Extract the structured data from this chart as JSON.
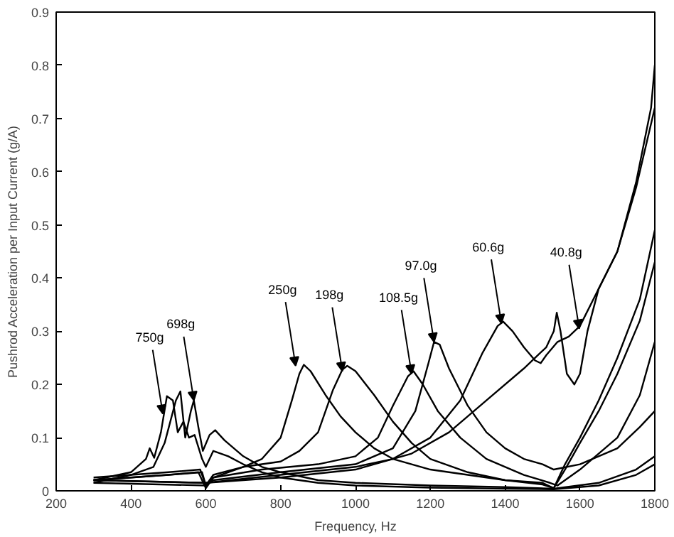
{
  "chart_data": {
    "type": "line",
    "xlabel": "Frequency, Hz",
    "ylabel": "Pushrod Acceleration per Input Current (g/A)",
    "xlim": [
      200,
      1800
    ],
    "ylim": [
      0,
      0.9
    ],
    "xticks": [
      200,
      400,
      600,
      800,
      1000,
      1200,
      1400,
      1600,
      1800
    ],
    "yticks": [
      0,
      0.1,
      0.2,
      0.3,
      0.4,
      0.5,
      0.6,
      0.7,
      0.8,
      0.9
    ],
    "grid": false,
    "marker": "none",
    "line_style": "solid",
    "series": [
      {
        "color": "#000000",
        "x": [
          300,
          400,
          440,
          450,
          462,
          480,
          496,
          512,
          525,
          540,
          555,
          570,
          590,
          600,
          620,
          660,
          700,
          750,
          800,
          900,
          1000,
          1200,
          1400,
          1530,
          1650,
          1750,
          1800
        ],
        "values": [
          0.02,
          0.035,
          0.06,
          0.08,
          0.062,
          0.11,
          0.178,
          0.17,
          0.11,
          0.13,
          0.1,
          0.105,
          0.06,
          0.045,
          0.075,
          0.065,
          0.05,
          0.035,
          0.025,
          0.015,
          0.01,
          0.006,
          0.004,
          0.003,
          0.01,
          0.03,
          0.05
        ]
      },
      {
        "color": "#000000",
        "x": [
          300,
          400,
          460,
          490,
          505,
          520,
          532,
          545,
          560,
          568,
          580,
          592,
          610,
          625,
          650,
          700,
          750,
          800,
          900,
          1000,
          1200,
          1400,
          1530,
          1650,
          1750,
          1800
        ],
        "values": [
          0.015,
          0.03,
          0.045,
          0.09,
          0.13,
          0.17,
          0.187,
          0.1,
          0.15,
          0.17,
          0.12,
          0.075,
          0.105,
          0.114,
          0.095,
          0.065,
          0.045,
          0.035,
          0.02,
          0.015,
          0.01,
          0.007,
          0.004,
          0.015,
          0.04,
          0.065
        ]
      },
      {
        "color": "#000000",
        "x": [
          300,
          400,
          500,
          580,
          600,
          620,
          700,
          750,
          800,
          830,
          850,
          862,
          880,
          920,
          960,
          1000,
          1050,
          1100,
          1200,
          1300,
          1400,
          1500,
          1530,
          1560,
          1600,
          1650,
          1700,
          1760,
          1800
        ],
        "values": [
          0.02,
          0.025,
          0.03,
          0.035,
          0.005,
          0.025,
          0.045,
          0.06,
          0.1,
          0.17,
          0.22,
          0.237,
          0.225,
          0.18,
          0.14,
          0.11,
          0.08,
          0.06,
          0.04,
          0.03,
          0.02,
          0.015,
          0.005,
          0.05,
          0.1,
          0.17,
          0.25,
          0.36,
          0.49
        ]
      },
      {
        "color": "#000000",
        "x": [
          300,
          400,
          500,
          585,
          600,
          620,
          700,
          750,
          800,
          850,
          900,
          940,
          965,
          978,
          1000,
          1050,
          1100,
          1150,
          1200,
          1300,
          1400,
          1500,
          1530,
          1560,
          1600,
          1650,
          1700,
          1760,
          1800
        ],
        "values": [
          0.025,
          0.03,
          0.035,
          0.04,
          0.01,
          0.03,
          0.045,
          0.05,
          0.055,
          0.075,
          0.11,
          0.19,
          0.228,
          0.235,
          0.225,
          0.18,
          0.13,
          0.09,
          0.06,
          0.035,
          0.02,
          0.012,
          0.005,
          0.04,
          0.09,
          0.15,
          0.22,
          0.32,
          0.43
        ]
      },
      {
        "color": "#000000",
        "x": [
          300,
          500,
          590,
          600,
          620,
          750,
          900,
          1000,
          1060,
          1100,
          1140,
          1155,
          1180,
          1220,
          1280,
          1350,
          1450,
          1520,
          1540,
          1600,
          1700,
          1760,
          1800
        ],
        "values": [
          0.02,
          0.03,
          0.035,
          0.01,
          0.025,
          0.04,
          0.05,
          0.065,
          0.1,
          0.16,
          0.215,
          0.225,
          0.2,
          0.15,
          0.1,
          0.06,
          0.03,
          0.015,
          0.01,
          0.04,
          0.1,
          0.18,
          0.28
        ]
      },
      {
        "color": "#000000",
        "x": [
          300,
          600,
          620,
          800,
          1000,
          1100,
          1160,
          1195,
          1210,
          1225,
          1250,
          1300,
          1350,
          1400,
          1450,
          1500,
          1530,
          1600,
          1700,
          1760,
          1800
        ],
        "values": [
          0.015,
          0.01,
          0.02,
          0.035,
          0.05,
          0.08,
          0.15,
          0.24,
          0.28,
          0.275,
          0.23,
          0.16,
          0.11,
          0.08,
          0.06,
          0.05,
          0.04,
          0.05,
          0.08,
          0.12,
          0.15
        ]
      },
      {
        "color": "#000000",
        "x": [
          300,
          600,
          800,
          1000,
          1100,
          1200,
          1280,
          1340,
          1380,
          1395,
          1420,
          1450,
          1480,
          1495,
          1510,
          1540,
          1570,
          1600,
          1650,
          1700,
          1750,
          1800
        ],
        "values": [
          0.02,
          0.015,
          0.03,
          0.045,
          0.06,
          0.1,
          0.17,
          0.26,
          0.31,
          0.318,
          0.3,
          0.27,
          0.245,
          0.24,
          0.255,
          0.28,
          0.29,
          0.31,
          0.38,
          0.45,
          0.57,
          0.72
        ]
      },
      {
        "color": "#000000",
        "x": [
          300,
          600,
          800,
          1000,
          1150,
          1250,
          1350,
          1450,
          1510,
          1530,
          1538,
          1548,
          1565,
          1585,
          1600,
          1620,
          1650,
          1700,
          1750,
          1790,
          1800
        ],
        "values": [
          0.02,
          0.015,
          0.025,
          0.04,
          0.07,
          0.11,
          0.17,
          0.23,
          0.27,
          0.3,
          0.335,
          0.3,
          0.22,
          0.2,
          0.22,
          0.3,
          0.38,
          0.45,
          0.58,
          0.72,
          0.8
        ]
      }
    ],
    "annotations": [
      {
        "text": "750g",
        "x": 485,
        "y": 0.145
      },
      {
        "text": "698g",
        "x": 568,
        "y": 0.17
      },
      {
        "text": "250g",
        "x": 840,
        "y": 0.235
      },
      {
        "text": "198g",
        "x": 965,
        "y": 0.225
      },
      {
        "text": "108.5g",
        "x": 1150,
        "y": 0.22
      },
      {
        "text": "97.0g",
        "x": 1210,
        "y": 0.28
      },
      {
        "text": "60.6g",
        "x": 1390,
        "y": 0.315
      },
      {
        "text": "40.8g",
        "x": 1598,
        "y": 0.305
      }
    ]
  }
}
